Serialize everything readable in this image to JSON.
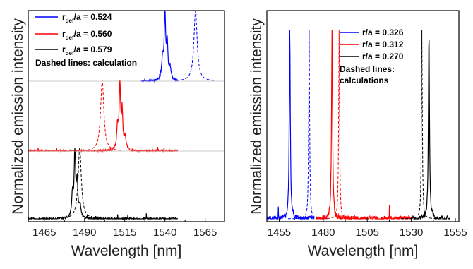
{
  "chart_data": [
    {
      "type": "line",
      "panel": "left",
      "xlabel": "Wavelength [nm]",
      "ylabel": "Normalized emission intensity",
      "xlim": [
        1455,
        1577
      ],
      "xticks": [
        "1465",
        "1490",
        "1515",
        "1540",
        "1565"
      ],
      "grid": false,
      "legend_placement": "top-left",
      "legend": [
        {
          "prefix": "r",
          "sub": "def",
          "suffix": "/a = 0.524",
          "color": "#0000ff"
        },
        {
          "prefix": "r",
          "sub": "def",
          "suffix": "/a = 0.560",
          "color": "#ff0000"
        },
        {
          "prefix": "r",
          "sub": "def",
          "suffix": "/a = 0.579",
          "color": "#000000"
        }
      ],
      "annotation": "Dashed lines: calculation",
      "series": [
        {
          "legend_index": 0,
          "color": "#0000ff",
          "offset": 2,
          "peak_nm": 1540,
          "calc_peak_nm": 1559,
          "x_range": [
            1525,
            1548
          ]
        },
        {
          "legend_index": 1,
          "color": "#ff0000",
          "offset": 1,
          "peak_nm": 1512,
          "calc_peak_nm": 1501,
          "x_range": [
            1455,
            1548
          ]
        },
        {
          "legend_index": 2,
          "color": "#000000",
          "offset": 0,
          "peak_nm": 1484,
          "calc_peak_nm": 1487,
          "x_range": [
            1455,
            1548
          ]
        }
      ]
    },
    {
      "type": "line",
      "panel": "right",
      "xlabel": "Wavelength [nm]",
      "ylabel": "Normalized emission intensity",
      "xlim": [
        1448,
        1557
      ],
      "xticks": [
        "1455",
        "1480",
        "1505",
        "1530",
        "1555"
      ],
      "grid": false,
      "legend_placement": "top-right",
      "legend": [
        {
          "prefix": "",
          "sub": "",
          "suffix": "r/a = 0.326",
          "color": "#0000ff"
        },
        {
          "prefix": "",
          "sub": "",
          "suffix": "r/a = 0.312",
          "color": "#ff0000"
        },
        {
          "prefix": "",
          "sub": "",
          "suffix": "r/a = 0.270",
          "color": "#000000"
        }
      ],
      "annotation_lines": [
        "Dashed lines:",
        "calculations"
      ],
      "series": [
        {
          "legend_index": 0,
          "color": "#0000ff",
          "peak_nm": 1461,
          "calc_peak_nm": 1472,
          "x_range": [
            1448,
            1475
          ]
        },
        {
          "legend_index": 1,
          "color": "#ff0000",
          "peak_nm": 1485,
          "calc_peak_nm": 1489,
          "x_range": [
            1476,
            1530
          ]
        },
        {
          "legend_index": 2,
          "color": "#000000",
          "peak_nm": 1540,
          "calc_peak_nm": 1536,
          "x_range": [
            1530,
            1552
          ]
        }
      ]
    }
  ]
}
